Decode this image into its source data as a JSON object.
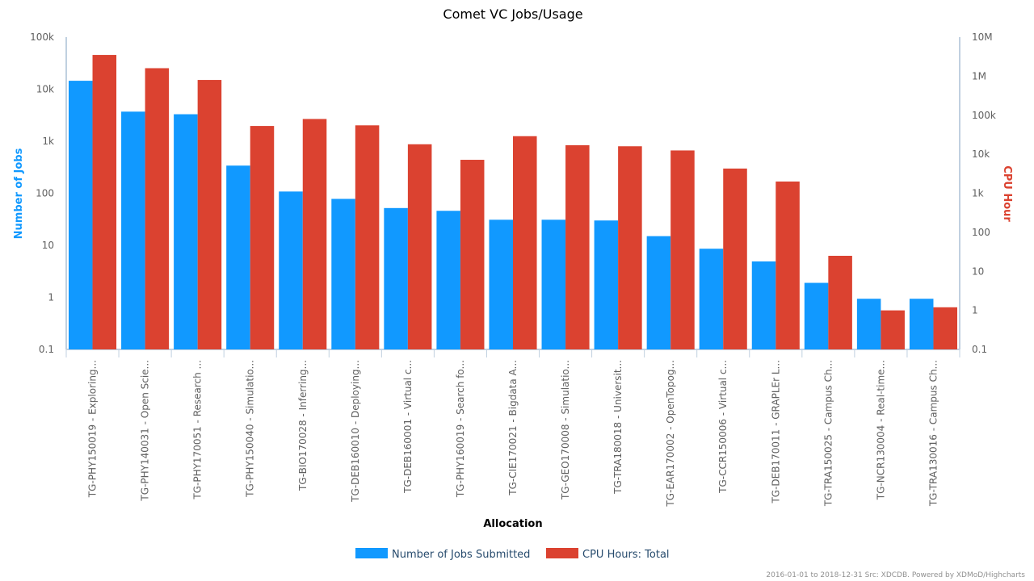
{
  "chart_data": {
    "type": "bar",
    "title": "Comet VC Jobs/Usage",
    "xlabel": "Allocation",
    "ylabel": "Number of Jobs",
    "y2label": "CPU Hour",
    "yscale": "log",
    "ylim": [
      0.1,
      100000
    ],
    "y2lim": [
      0.1,
      10000000
    ],
    "y_ticks": [
      "0.1",
      "1",
      "10",
      "100",
      "1k",
      "10k",
      "100k"
    ],
    "y2_ticks": [
      "0.1",
      "1",
      "10",
      "100",
      "1k",
      "10k",
      "100k",
      "1M",
      "10M"
    ],
    "categories": [
      "TG-PHY150019 - Exploring...",
      "TG-PHY140031 - Open Scie...",
      "TG-PHY170051 - Research ...",
      "TG-PHY150040 - Simulatio...",
      "TG-BIO170028 - Inferring...",
      "TG-DEB160010 - Deploying...",
      "TG-DEB160001 - Virtual c...",
      "TG-PHY160019 - Search fo...",
      "TG-CIE170021 - Bigdata A...",
      "TG-GEO170008 - Simulatio...",
      "TG-TRA180018 - Universit...",
      "TG-EAR170002 - OpenTopog...",
      "TG-CCR150006 - Virtual c...",
      "TG-DEB170011 - GRAPLEr L...",
      "TG-TRA150025 - Campus Ch...",
      "TG-NCR130004 - Real-time...",
      "TG-TRA130016 - Campus Ch..."
    ],
    "series": [
      {
        "name": "Number of Jobs Submitted",
        "color": "#1199ff",
        "axis": "left",
        "values": [
          14500,
          3700,
          3300,
          340,
          108,
          78,
          52,
          46,
          31,
          31,
          30,
          15,
          8.6,
          4.9,
          1.9,
          0.94,
          0.94
        ]
      },
      {
        "name": "CPU Hours: Total",
        "color": "#db4230",
        "axis": "right",
        "values": [
          3500000,
          1600000,
          800000,
          53000,
          80000,
          55000,
          18000,
          7200,
          29000,
          17000,
          16000,
          12500,
          4300,
          2000,
          25,
          1.0,
          1.2
        ]
      }
    ],
    "legend": "bottom-center",
    "grid": false
  },
  "credits": "2016-01-01 to 2018-12-31 Src: XDCDB. Powered by XDMoD/Highcharts"
}
